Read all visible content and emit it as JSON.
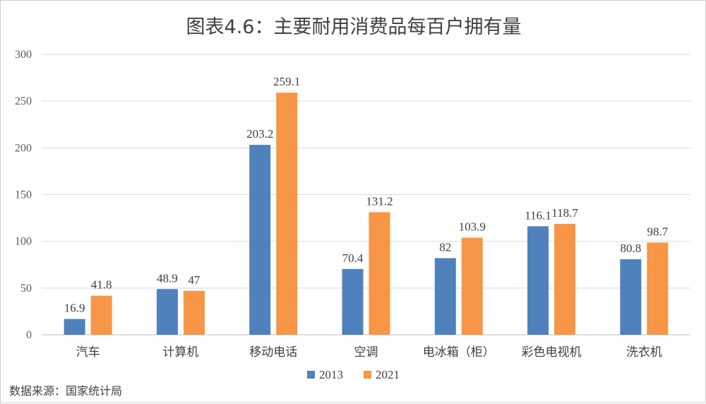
{
  "chart_data": {
    "type": "bar",
    "title": "图表4.6：主要耐用消费品每百户拥有量",
    "categories": [
      "汽车",
      "计算机",
      "移动电话",
      "空调",
      "电冰箱（柜）",
      "彩色电视机",
      "洗衣机"
    ],
    "series": [
      {
        "name": "2013",
        "color": "#4f81bd",
        "values": [
          16.9,
          48.9,
          203.2,
          70.4,
          82,
          116.1,
          80.8
        ]
      },
      {
        "name": "2021",
        "color": "#f79646",
        "values": [
          41.8,
          47,
          259.1,
          131.2,
          103.9,
          118.7,
          98.7
        ]
      }
    ],
    "ylim": [
      0,
      300
    ],
    "yticks": [
      0,
      50,
      100,
      150,
      200,
      250,
      300
    ],
    "grid": true,
    "legend": "bottom",
    "source": "数据来源：国家统计局"
  }
}
